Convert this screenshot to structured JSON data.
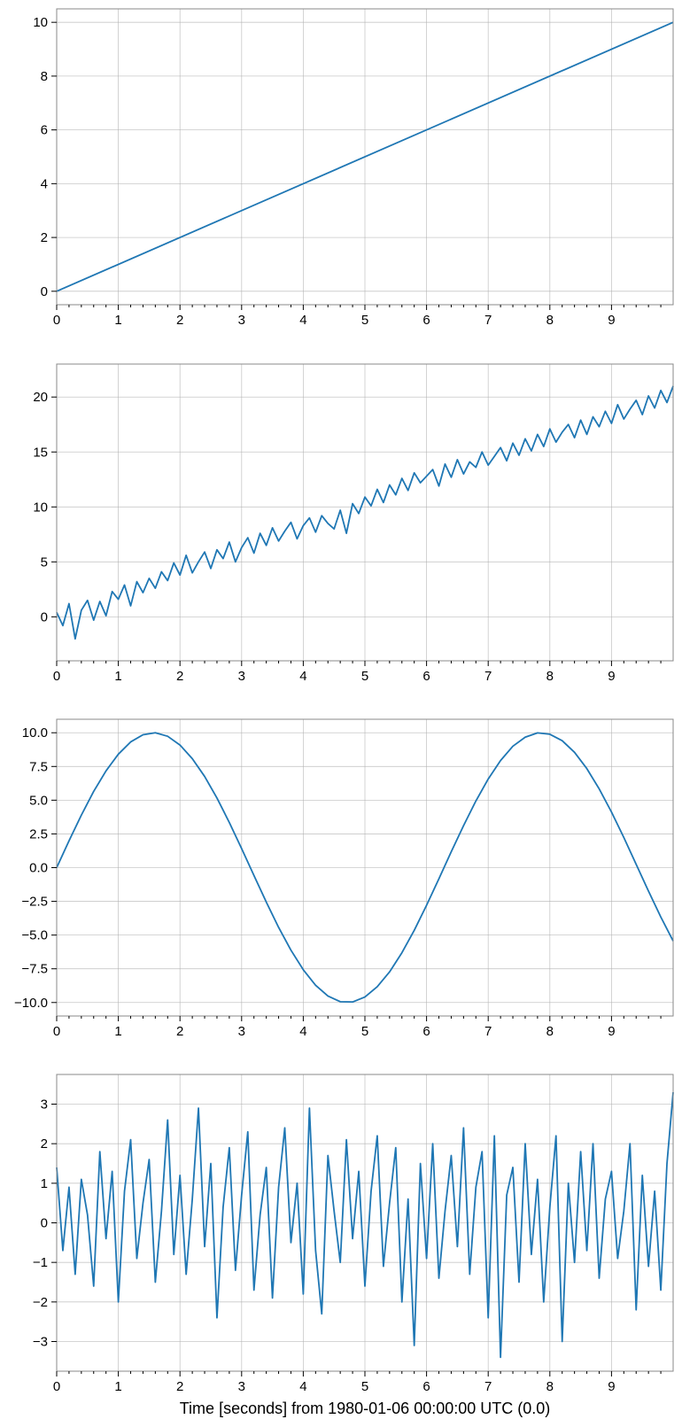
{
  "chart_data": [
    {
      "type": "line",
      "xlim": [
        0,
        10
      ],
      "ylim": [
        -0.5,
        10.5
      ],
      "xticks": [
        0,
        1,
        2,
        3,
        4,
        5,
        6,
        7,
        8,
        9
      ],
      "xtick_labels": [
        "0",
        "1",
        "2",
        "3",
        "4",
        "5",
        "6",
        "7",
        "8",
        "9"
      ],
      "yticks": [
        0,
        2,
        4,
        6,
        8,
        10
      ],
      "ytick_labels": [
        "0",
        "2",
        "4",
        "6",
        "8",
        "10"
      ],
      "grid": true,
      "color": "#1f77b4",
      "series": [
        {
          "x": [
            0,
            10
          ],
          "y": [
            0,
            10
          ]
        }
      ]
    },
    {
      "type": "line",
      "xlim": [
        0,
        10
      ],
      "ylim": [
        -4,
        23
      ],
      "xticks": [
        0,
        1,
        2,
        3,
        4,
        5,
        6,
        7,
        8,
        9
      ],
      "xtick_labels": [
        "0",
        "1",
        "2",
        "3",
        "4",
        "5",
        "6",
        "7",
        "8",
        "9"
      ],
      "yticks": [
        0,
        5,
        10,
        15,
        20
      ],
      "ytick_labels": [
        "0",
        "5",
        "10",
        "15",
        "20"
      ],
      "grid": true,
      "color": "#1f77b4",
      "series": [
        {
          "x": [
            0.0,
            0.1,
            0.2,
            0.3,
            0.4,
            0.5,
            0.6,
            0.7,
            0.8,
            0.9,
            1.0,
            1.1,
            1.2,
            1.3,
            1.4,
            1.5,
            1.6,
            1.7,
            1.8,
            1.9,
            2.0,
            2.1,
            2.2,
            2.3,
            2.4,
            2.5,
            2.6,
            2.7,
            2.8,
            2.9,
            3.0,
            3.1,
            3.2,
            3.3,
            3.4,
            3.5,
            3.6,
            3.7,
            3.8,
            3.9,
            4.0,
            4.1,
            4.2,
            4.3,
            4.4,
            4.5,
            4.6,
            4.7,
            4.8,
            4.9,
            5.0,
            5.1,
            5.2,
            5.3,
            5.4,
            5.5,
            5.6,
            5.7,
            5.8,
            5.9,
            6.0,
            6.1,
            6.2,
            6.3,
            6.4,
            6.5,
            6.6,
            6.7,
            6.8,
            6.9,
            7.0,
            7.1,
            7.2,
            7.3,
            7.4,
            7.5,
            7.6,
            7.7,
            7.8,
            7.9,
            8.0,
            8.1,
            8.2,
            8.3,
            8.4,
            8.5,
            8.6,
            8.7,
            8.8,
            8.9,
            9.0,
            9.1,
            9.2,
            9.3,
            9.4,
            9.5,
            9.6,
            9.7,
            9.8,
            9.9,
            10.0
          ],
          "y": [
            0.4,
            -0.8,
            1.2,
            -2.0,
            0.6,
            1.5,
            -0.3,
            1.4,
            0.1,
            2.3,
            1.6,
            2.9,
            1.0,
            3.2,
            2.2,
            3.5,
            2.6,
            4.1,
            3.3,
            4.9,
            3.8,
            5.6,
            4.0,
            5.0,
            5.9,
            4.4,
            6.1,
            5.3,
            6.8,
            5.0,
            6.3,
            7.2,
            5.8,
            7.6,
            6.5,
            8.1,
            6.9,
            7.8,
            8.6,
            7.1,
            8.3,
            9.0,
            7.7,
            9.2,
            8.5,
            8.0,
            9.7,
            7.6,
            10.3,
            9.4,
            10.9,
            10.1,
            11.6,
            10.4,
            12.0,
            11.1,
            12.6,
            11.5,
            13.1,
            12.2,
            12.8,
            13.4,
            11.9,
            13.9,
            12.7,
            14.3,
            13.0,
            14.1,
            13.6,
            15.0,
            13.8,
            14.6,
            15.4,
            14.2,
            15.8,
            14.7,
            16.2,
            15.1,
            16.6,
            15.5,
            17.1,
            15.9,
            16.8,
            17.5,
            16.3,
            17.9,
            16.6,
            18.2,
            17.3,
            18.7,
            17.6,
            19.3,
            18.0,
            18.9,
            19.7,
            18.4,
            20.1,
            19.0,
            20.6,
            19.5,
            21.0
          ]
        }
      ]
    },
    {
      "type": "line",
      "xlim": [
        0,
        10
      ],
      "ylim": [
        -11,
        11
      ],
      "xticks": [
        0,
        1,
        2,
        3,
        4,
        5,
        6,
        7,
        8,
        9
      ],
      "xtick_labels": [
        "0",
        "1",
        "2",
        "3",
        "4",
        "5",
        "6",
        "7",
        "8",
        "9"
      ],
      "yticks": [
        10.0,
        7.5,
        5.0,
        2.5,
        0.0,
        -2.5,
        -5.0,
        -7.5,
        -10.0
      ],
      "ytick_labels": [
        "10.0",
        "7.5",
        "5.0",
        "2.5",
        "0.0",
        "−2.5",
        "−5.0",
        "−7.5",
        "−10.0"
      ],
      "grid": true,
      "color": "#1f77b4",
      "series": [
        {
          "x": [
            0.0,
            0.2,
            0.4,
            0.6,
            0.8,
            1.0,
            1.2,
            1.4,
            1.6,
            1.8,
            2.0,
            2.2,
            2.4,
            2.6,
            2.8,
            3.0,
            3.2,
            3.4,
            3.6,
            3.8,
            4.0,
            4.2,
            4.4,
            4.6,
            4.8,
            5.0,
            5.2,
            5.4,
            5.6,
            5.8,
            6.0,
            6.2,
            6.4,
            6.6,
            6.8,
            7.0,
            7.2,
            7.4,
            7.6,
            7.8,
            8.0,
            8.2,
            8.4,
            8.6,
            8.8,
            9.0,
            9.2,
            9.4,
            9.6,
            9.8,
            10.0
          ],
          "y": [
            0.0,
            1.99,
            3.89,
            5.65,
            7.17,
            8.41,
            9.32,
            9.85,
            10.0,
            9.74,
            9.09,
            8.08,
            6.76,
            5.16,
            3.35,
            1.41,
            -0.58,
            -2.55,
            -4.43,
            -6.12,
            -7.57,
            -8.72,
            -9.52,
            -9.94,
            -9.96,
            -9.59,
            -8.83,
            -7.73,
            -6.31,
            -4.65,
            -2.79,
            -0.83,
            1.17,
            3.11,
            4.94,
            6.57,
            7.94,
            9.0,
            9.67,
            9.99,
            9.89,
            9.41,
            8.55,
            7.34,
            5.84,
            4.12,
            2.23,
            0.25,
            -1.74,
            -3.66,
            -5.44
          ]
        }
      ]
    },
    {
      "type": "line",
      "xlim": [
        0,
        10
      ],
      "ylim": [
        -3.75,
        3.75
      ],
      "xticks": [
        0,
        1,
        2,
        3,
        4,
        5,
        6,
        7,
        8,
        9
      ],
      "xtick_labels": [
        "0",
        "1",
        "2",
        "3",
        "4",
        "5",
        "6",
        "7",
        "8",
        "9"
      ],
      "yticks": [
        3,
        2,
        1,
        0,
        -1,
        -2,
        -3
      ],
      "ytick_labels": [
        "3",
        "2",
        "1",
        "0",
        "−1",
        "−2",
        "−3"
      ],
      "grid": true,
      "color": "#1f77b4",
      "xlabel": "Time [seconds] from 1980-01-06 00:00:00 UTC (0.0)",
      "series": [
        {
          "x": [
            0.0,
            0.1,
            0.2,
            0.3,
            0.4,
            0.5,
            0.6,
            0.7,
            0.8,
            0.9,
            1.0,
            1.1,
            1.2,
            1.3,
            1.4,
            1.5,
            1.6,
            1.7,
            1.8,
            1.9,
            2.0,
            2.1,
            2.2,
            2.3,
            2.4,
            2.5,
            2.6,
            2.7,
            2.8,
            2.9,
            3.0,
            3.1,
            3.2,
            3.3,
            3.4,
            3.5,
            3.6,
            3.7,
            3.8,
            3.9,
            4.0,
            4.1,
            4.2,
            4.3,
            4.4,
            4.5,
            4.6,
            4.7,
            4.8,
            4.9,
            5.0,
            5.1,
            5.2,
            5.3,
            5.4,
            5.5,
            5.6,
            5.7,
            5.8,
            5.9,
            6.0,
            6.1,
            6.2,
            6.3,
            6.4,
            6.5,
            6.6,
            6.7,
            6.8,
            6.9,
            7.0,
            7.1,
            7.2,
            7.3,
            7.4,
            7.5,
            7.6,
            7.7,
            7.8,
            7.9,
            8.0,
            8.1,
            8.2,
            8.3,
            8.4,
            8.5,
            8.6,
            8.7,
            8.8,
            8.9,
            9.0,
            9.1,
            9.2,
            9.3,
            9.4,
            9.5,
            9.6,
            9.7,
            9.8,
            9.9,
            10.0
          ],
          "y": [
            1.4,
            -0.7,
            0.9,
            -1.3,
            1.1,
            0.2,
            -1.6,
            1.8,
            -0.4,
            1.3,
            -2.0,
            0.8,
            2.1,
            -0.9,
            0.5,
            1.6,
            -1.5,
            0.3,
            2.6,
            -0.8,
            1.2,
            -1.3,
            0.6,
            2.9,
            -0.6,
            1.5,
            -2.4,
            0.4,
            1.9,
            -1.2,
            0.7,
            2.3,
            -1.7,
            0.2,
            1.4,
            -1.9,
            0.9,
            2.4,
            -0.5,
            1.0,
            -1.8,
            2.9,
            -0.7,
            -2.3,
            1.7,
            0.3,
            -1.0,
            2.1,
            -0.4,
            1.3,
            -1.6,
            0.8,
            2.2,
            -1.1,
            0.5,
            1.9,
            -2.0,
            0.6,
            -3.1,
            1.5,
            -0.9,
            2.0,
            -1.4,
            0.3,
            1.7,
            -0.6,
            2.4,
            -1.3,
            0.9,
            1.8,
            -2.4,
            2.2,
            -3.4,
            0.7,
            1.4,
            -1.5,
            2.0,
            -0.8,
            1.1,
            -2.0,
            0.4,
            2.2,
            -3.0,
            1.0,
            -1.0,
            1.8,
            -0.7,
            2.0,
            -1.4,
            0.6,
            1.3,
            -0.9,
            0.3,
            2.0,
            -2.2,
            1.2,
            -1.1,
            0.8,
            -1.7,
            1.5,
            3.3
          ]
        }
      ]
    }
  ]
}
